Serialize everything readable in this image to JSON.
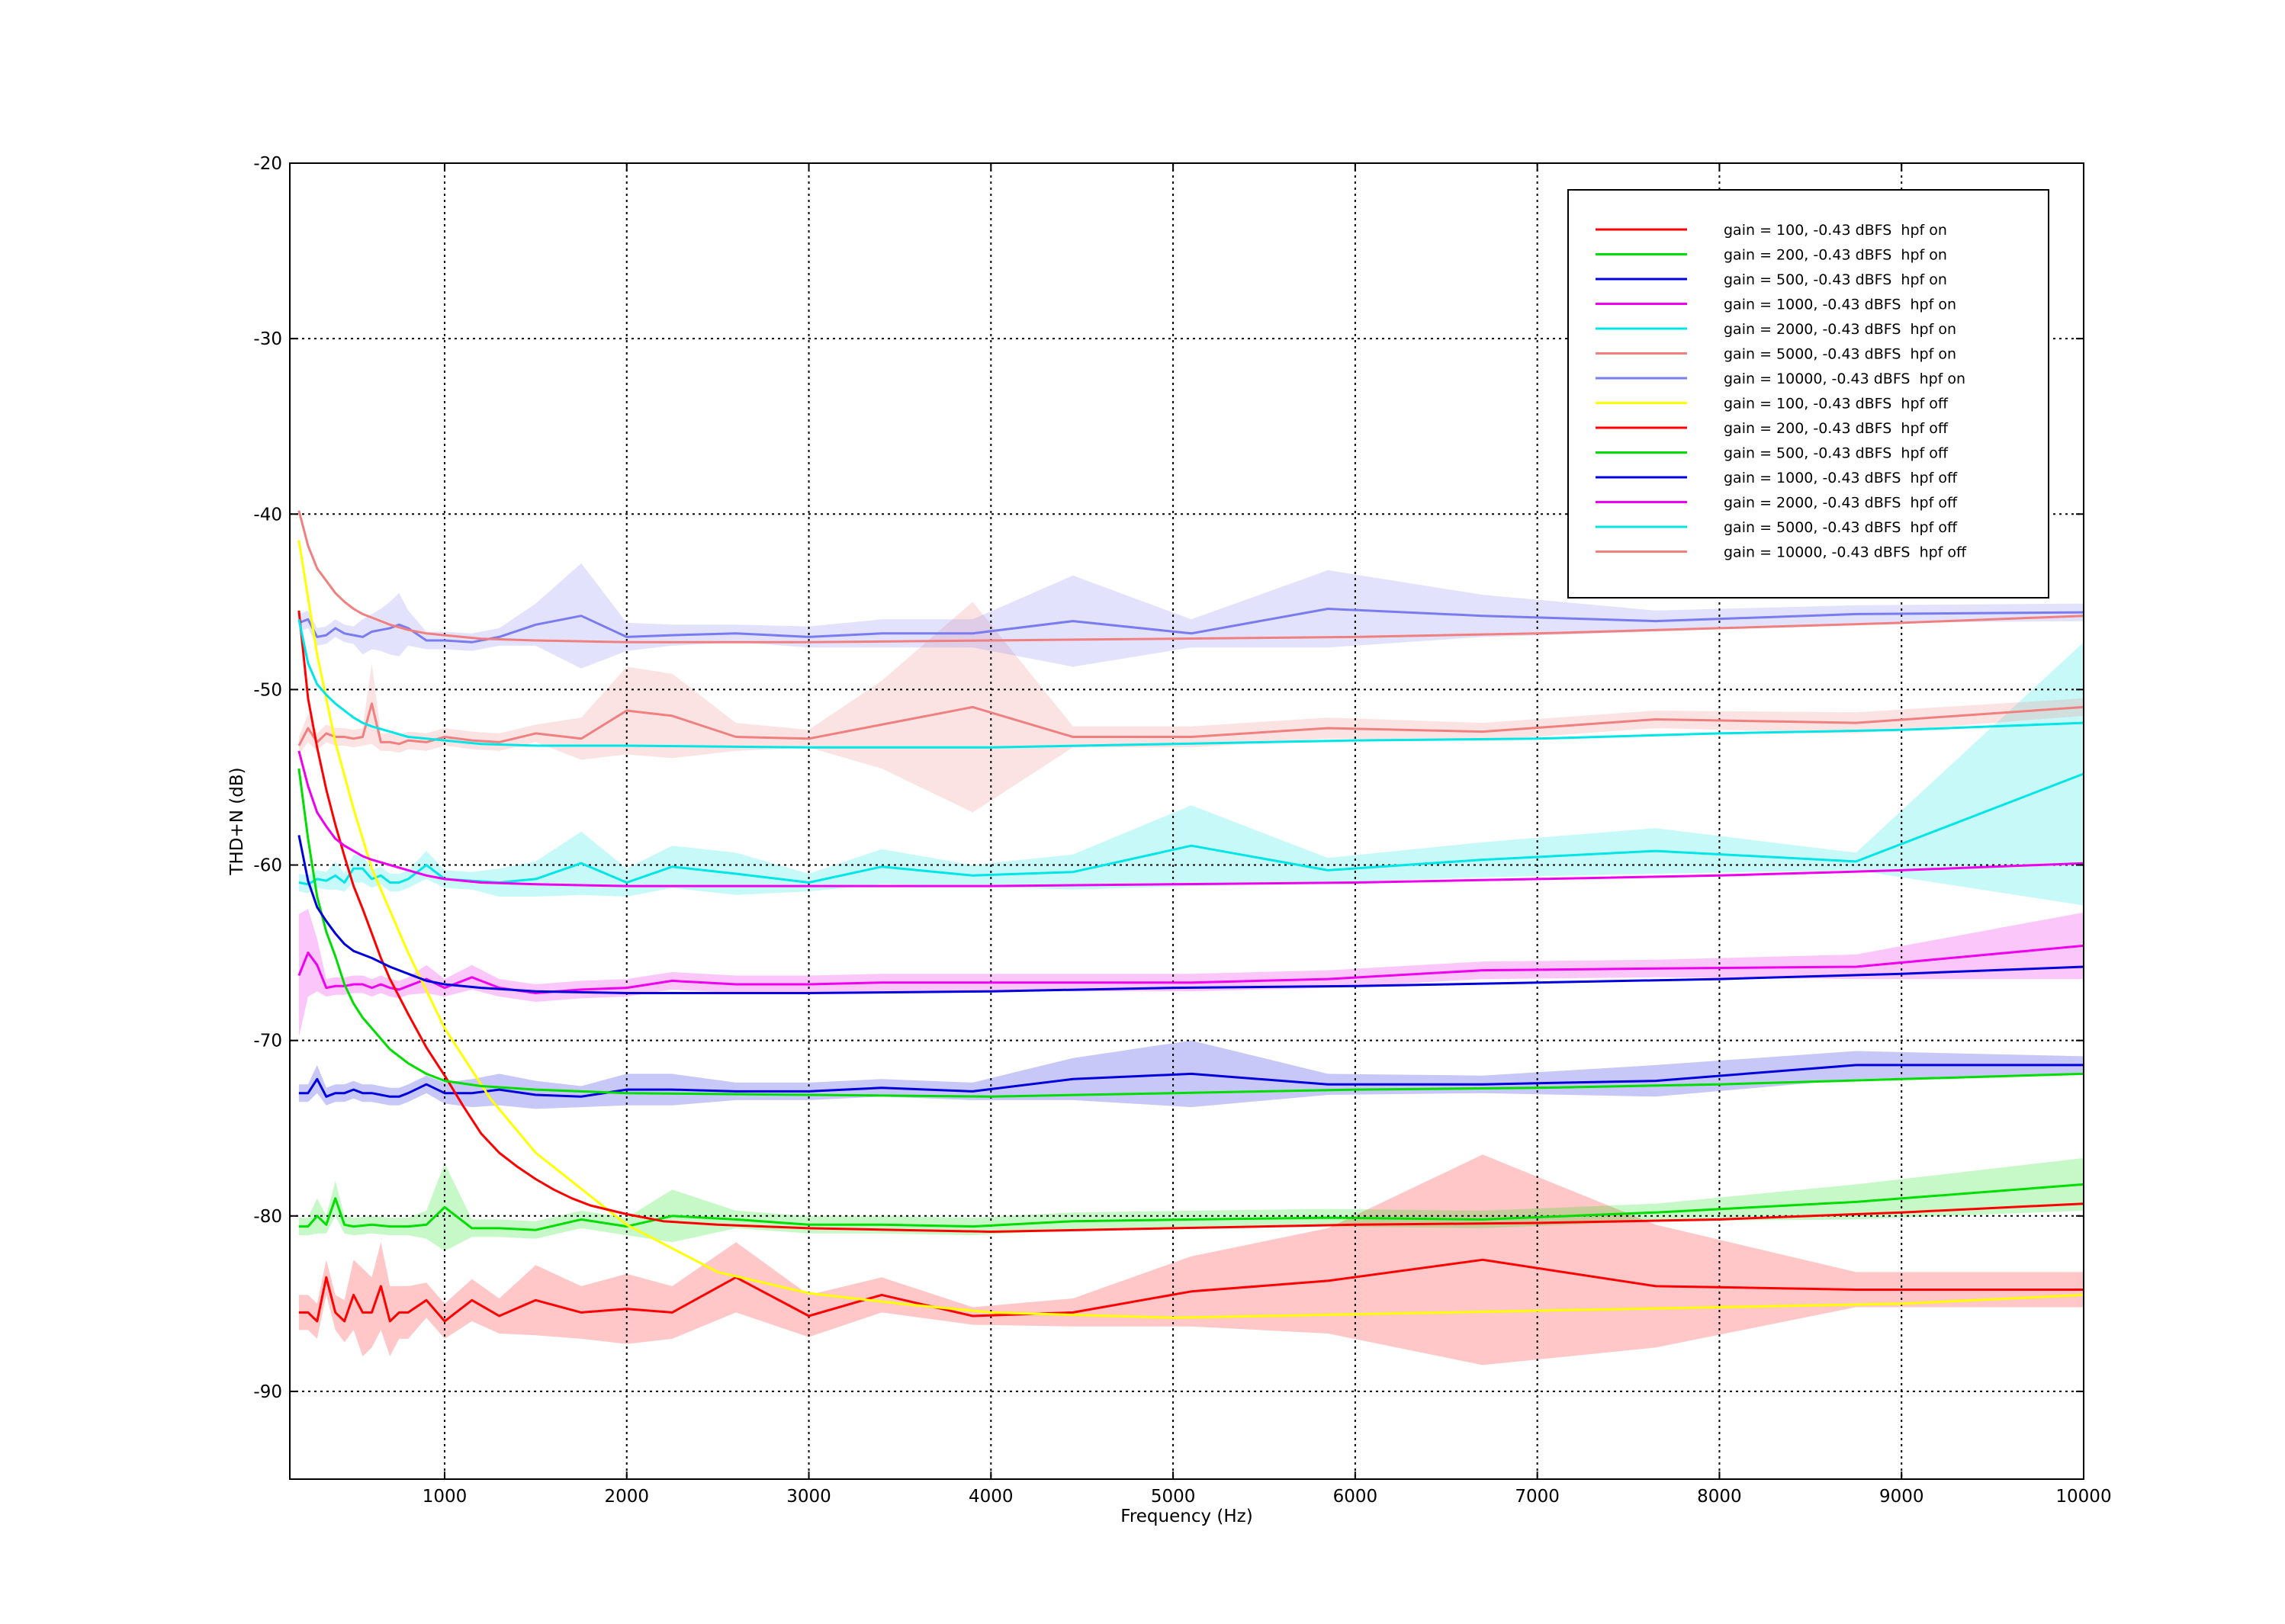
{
  "chart_data": {
    "type": "line",
    "title": "",
    "xlabel": "Frequency (Hz)",
    "ylabel": "THD+N (dB)",
    "xlim": [
      150,
      10000
    ],
    "ylim": [
      -95,
      -20
    ],
    "xticks": [
      1000,
      2000,
      3000,
      4000,
      5000,
      6000,
      7000,
      8000,
      9000,
      10000
    ],
    "yticks": [
      -90,
      -80,
      -70,
      -60,
      -50,
      -40,
      -30,
      -20
    ],
    "grid": true,
    "legend_position": "top-right",
    "series": [
      {
        "name": "gain = 100, -0.43 dBFS  hpf on",
        "color": "#ff0000",
        "x": [
          200,
          250,
          300,
          350,
          400,
          450,
          500,
          550,
          600,
          650,
          700,
          750,
          800,
          900,
          1000,
          1150,
          1300,
          1500,
          1750,
          2000,
          2250,
          2600,
          3000,
          3400,
          3900,
          4450,
          5100,
          5850,
          6700,
          7650,
          8750,
          10000
        ],
        "y": [
          -85.5,
          -85.5,
          -86,
          -83.5,
          -85.5,
          -86,
          -84.5,
          -85.5,
          -85.5,
          -84,
          -86,
          -85.5,
          -85.5,
          -84.8,
          -86,
          -84.8,
          -85.7,
          -84.8,
          -85.5,
          -85.3,
          -85.5,
          -83.5,
          -85.7,
          -84.5,
          -85.7,
          -85.5,
          -84.3,
          -83.7,
          -82.5,
          -84,
          -84.2,
          -84.2
        ],
        "band": [
          1.0,
          1.0,
          1.0,
          1.0,
          1.0,
          1.2,
          2.0,
          2.5,
          2.0,
          2.5,
          2.0,
          1.5,
          1.5,
          1.0,
          1.0,
          1.2,
          1.0,
          2.0,
          1.5,
          2.0,
          1.5,
          2.0,
          1.2,
          1.0,
          0.5,
          0.8,
          2.0,
          3.0,
          6.0,
          3.5,
          1.0,
          1.0
        ]
      },
      {
        "name": "gain = 200, -0.43 dBFS  hpf on",
        "color": "#00dd00",
        "x": [
          200,
          250,
          300,
          350,
          400,
          450,
          500,
          600,
          700,
          800,
          900,
          1000,
          1150,
          1300,
          1500,
          1750,
          2000,
          2250,
          2600,
          3000,
          3400,
          3900,
          4450,
          5100,
          5850,
          6700,
          7650,
          8750,
          10000
        ],
        "y": [
          -80.6,
          -80.6,
          -80,
          -80.5,
          -79,
          -80.5,
          -80.6,
          -80.5,
          -80.6,
          -80.6,
          -80.5,
          -79.5,
          -80.7,
          -80.7,
          -80.8,
          -80.2,
          -80.6,
          -80,
          -80.2,
          -80.5,
          -80.5,
          -80.6,
          -80.3,
          -80.2,
          -80.1,
          -80.2,
          -79.8,
          -79.2,
          -78.2
        ],
        "band": [
          0.5,
          0.5,
          1.0,
          0.5,
          1.0,
          0.5,
          0.5,
          0.5,
          0.5,
          0.5,
          0.8,
          2.5,
          0.5,
          0.5,
          0.5,
          0.5,
          0.5,
          1.5,
          0.5,
          0.5,
          0.5,
          0.5,
          0.5,
          0.5,
          0.5,
          0.5,
          0.5,
          1.0,
          1.5
        ]
      },
      {
        "name": "gain = 500, -0.43 dBFS  hpf on",
        "color": "#0000dd",
        "x": [
          200,
          250,
          300,
          350,
          400,
          450,
          500,
          550,
          600,
          650,
          700,
          750,
          800,
          900,
          1000,
          1150,
          1300,
          1500,
          1750,
          2000,
          2250,
          2600,
          3000,
          3400,
          3900,
          4450,
          5100,
          5850,
          6700,
          7650,
          8750,
          10000
        ],
        "y": [
          -73,
          -73,
          -72.2,
          -73.2,
          -73,
          -73,
          -72.8,
          -73,
          -73,
          -73.1,
          -73.2,
          -73.2,
          -73,
          -72.5,
          -73,
          -73,
          -72.8,
          -73.1,
          -73.2,
          -72.8,
          -72.8,
          -72.9,
          -72.9,
          -72.7,
          -72.9,
          -72.2,
          -71.9,
          -72.5,
          -72.5,
          -72.3,
          -71.4,
          -71.4
        ],
        "band": [
          0.5,
          0.5,
          0.8,
          0.5,
          0.5,
          0.5,
          0.5,
          0.5,
          0.5,
          0.5,
          0.5,
          0.5,
          0.5,
          0.5,
          0.6,
          0.8,
          0.9,
          0.8,
          0.6,
          0.9,
          0.9,
          0.5,
          0.5,
          0.5,
          0.5,
          1.2,
          1.9,
          0.6,
          0.5,
          0.9,
          0.8,
          0.5
        ]
      },
      {
        "name": "gain = 1000, -0.43 dBFS  hpf on",
        "color": "#ee00ee",
        "x": [
          200,
          250,
          300,
          350,
          400,
          450,
          500,
          550,
          600,
          650,
          700,
          750,
          800,
          900,
          1000,
          1150,
          1300,
          1500,
          1750,
          2000,
          2250,
          2600,
          3000,
          3400,
          3900,
          4450,
          5100,
          5850,
          6700,
          7650,
          8750,
          10000
        ],
        "y": [
          -66.3,
          -65,
          -65.7,
          -67,
          -66.9,
          -66.9,
          -66.8,
          -66.8,
          -67,
          -66.8,
          -67,
          -67.1,
          -66.9,
          -66.5,
          -67,
          -66.4,
          -67,
          -67.3,
          -67.1,
          -67,
          -66.6,
          -66.8,
          -66.8,
          -66.7,
          -66.7,
          -66.7,
          -66.7,
          -66.5,
          -66,
          -65.9,
          -65.8,
          -64.6
        ],
        "band": [
          3.5,
          2.5,
          1.5,
          0.5,
          0.5,
          0.5,
          0.5,
          0.5,
          0.5,
          0.5,
          0.5,
          0.5,
          0.5,
          0.8,
          0.5,
          0.7,
          0.5,
          0.5,
          0.5,
          0.5,
          0.5,
          0.5,
          0.5,
          0.5,
          0.5,
          0.5,
          0.5,
          0.5,
          0.5,
          0.5,
          0.7,
          1.9
        ]
      },
      {
        "name": "gain = 2000, -0.43 dBFS  hpf on",
        "color": "#00e5e5",
        "x": [
          200,
          250,
          300,
          350,
          400,
          450,
          500,
          550,
          600,
          650,
          700,
          750,
          800,
          900,
          1000,
          1150,
          1300,
          1500,
          1750,
          2000,
          2250,
          2600,
          3000,
          3400,
          3900,
          4450,
          5100,
          5850,
          6700,
          7650,
          8750,
          10000
        ],
        "y": [
          -61,
          -61.1,
          -60.8,
          -60.9,
          -60.6,
          -61,
          -60.2,
          -60.2,
          -60.8,
          -60.6,
          -61,
          -61,
          -60.8,
          -60,
          -60.8,
          -60.9,
          -61,
          -60.8,
          -59.9,
          -61,
          -60.1,
          -60.5,
          -61,
          -60.1,
          -60.6,
          -60.4,
          -58.9,
          -60.3,
          -59.7,
          -59.2,
          -59.8,
          -54.8
        ],
        "band": [
          0.5,
          0.5,
          0.5,
          0.5,
          0.8,
          0.5,
          0.8,
          0.8,
          0.5,
          0.5,
          0.5,
          0.5,
          0.5,
          0.8,
          0.5,
          0.5,
          0.8,
          1.0,
          1.8,
          0.8,
          1.2,
          1.2,
          0.5,
          1.0,
          0.6,
          1.0,
          2.3,
          0.7,
          1.0,
          1.3,
          0.5,
          7.5
        ]
      },
      {
        "name": "gain = 5000, -0.43 dBFS  hpf on",
        "color": "#f08080",
        "x": [
          200,
          250,
          300,
          350,
          400,
          450,
          500,
          550,
          600,
          650,
          700,
          750,
          800,
          900,
          1000,
          1150,
          1300,
          1500,
          1750,
          2000,
          2250,
          2600,
          3000,
          3400,
          3900,
          4450,
          5100,
          5850,
          6700,
          7650,
          8750,
          10000
        ],
        "y": [
          -53.2,
          -52.2,
          -53,
          -52.5,
          -52.7,
          -52.7,
          -52.8,
          -52.7,
          -50.8,
          -53,
          -53,
          -53.1,
          -52.9,
          -53,
          -52.7,
          -52.9,
          -53,
          -52.5,
          -52.8,
          -51.2,
          -51.5,
          -52.7,
          -52.8,
          -52,
          -51,
          -52.7,
          -52.7,
          -52.2,
          -52.4,
          -51.7,
          -51.9,
          -51
        ],
        "band": [
          0.5,
          0.8,
          0.5,
          0.5,
          0.5,
          0.5,
          0.5,
          0.5,
          2.3,
          0.5,
          0.5,
          0.5,
          0.5,
          0.5,
          0.5,
          0.5,
          0.5,
          0.5,
          1.2,
          2.5,
          2.4,
          0.8,
          0.5,
          2.5,
          6.0,
          0.6,
          0.6,
          0.6,
          0.5,
          0.5,
          0.6,
          0.5
        ]
      },
      {
        "name": "gain = 10000, -0.43 dBFS  hpf on",
        "color": "#7b7bf0",
        "x": [
          200,
          250,
          300,
          350,
          400,
          450,
          500,
          550,
          600,
          650,
          700,
          750,
          800,
          900,
          1000,
          1150,
          1300,
          1500,
          1750,
          2000,
          2250,
          2600,
          3000,
          3400,
          3900,
          4450,
          5100,
          5850,
          6700,
          7650,
          8750,
          10000
        ],
        "y": [
          -46.2,
          -46,
          -47,
          -46.9,
          -46.5,
          -46.8,
          -46.9,
          -47,
          -46.7,
          -46.6,
          -46.5,
          -46.3,
          -46.5,
          -47.2,
          -47.2,
          -47.3,
          -47,
          -46.3,
          -45.8,
          -47,
          -46.9,
          -46.8,
          -47,
          -46.8,
          -46.8,
          -46.1,
          -46.8,
          -45.4,
          -45.8,
          -46.1,
          -45.7,
          -45.6
        ],
        "band": [
          0.5,
          0.5,
          0.5,
          0.5,
          0.5,
          0.5,
          0.5,
          1.0,
          1.0,
          1.2,
          1.5,
          1.8,
          1.0,
          0.5,
          0.5,
          0.5,
          0.5,
          1.2,
          3.0,
          0.8,
          0.6,
          0.5,
          0.6,
          0.8,
          0.8,
          2.6,
          0.8,
          2.2,
          1.2,
          0.6,
          0.5,
          0.5
        ]
      },
      {
        "name": "gain = 100, -0.43 dBFS  hpf off",
        "color": "#ffff00",
        "x": [
          200,
          300,
          400,
          500,
          600,
          700,
          800,
          1000,
          1250,
          1500,
          2000,
          2500,
          3000,
          3500,
          4000,
          5000,
          6000,
          7000,
          8000,
          9000,
          10000
        ],
        "y": [
          -41.5,
          -48,
          -53,
          -56.8,
          -60.2,
          -62.6,
          -65,
          -69.3,
          -73.3,
          -76.4,
          -80.5,
          -83.2,
          -84.4,
          -85,
          -85.5,
          -85.8,
          -85.6,
          -85.4,
          -85.2,
          -85,
          -84.5
        ],
        "band": []
      },
      {
        "name": "gain = 200, -0.43 dBFS  hpf off",
        "color": "#ff0000",
        "x": [
          200,
          250,
          300,
          350,
          400,
          450,
          500,
          550,
          600,
          650,
          700,
          750,
          800,
          900,
          1000,
          1100,
          1200,
          1300,
          1400,
          1500,
          1600,
          1700,
          1800,
          2000,
          2200,
          2500,
          3000,
          3500,
          4000,
          5000,
          6000,
          7000,
          8000,
          9000,
          10000
        ],
        "y": [
          -45.5,
          -50.5,
          -53.3,
          -55.7,
          -57.7,
          -59.5,
          -61.2,
          -62.5,
          -63.9,
          -65.3,
          -66.5,
          -67.5,
          -68.5,
          -70.4,
          -72,
          -73.7,
          -75.3,
          -76.4,
          -77.2,
          -77.9,
          -78.5,
          -79,
          -79.4,
          -79.9,
          -80.3,
          -80.5,
          -80.7,
          -80.8,
          -80.9,
          -80.7,
          -80.5,
          -80.4,
          -80.2,
          -79.8,
          -79.3
        ],
        "band": []
      },
      {
        "name": "gain = 500, -0.43 dBFS  hpf off",
        "color": "#00dd00",
        "x": [
          200,
          250,
          300,
          350,
          400,
          450,
          500,
          550,
          600,
          700,
          800,
          900,
          1000,
          1200,
          1500,
          2000,
          3000,
          4000,
          5000,
          6000,
          7000,
          8000,
          9000,
          10000
        ],
        "y": [
          -54.5,
          -58.5,
          -61.8,
          -63.8,
          -65.2,
          -66.8,
          -67.9,
          -68.7,
          -69.3,
          -70.5,
          -71.3,
          -71.9,
          -72.3,
          -72.6,
          -72.8,
          -73,
          -73.1,
          -73.2,
          -73,
          -72.8,
          -72.7,
          -72.5,
          -72.2,
          -71.9
        ],
        "band": []
      },
      {
        "name": "gain = 1000, -0.43 dBFS  hpf off",
        "color": "#0000dd",
        "x": [
          200,
          250,
          300,
          350,
          400,
          450,
          500,
          550,
          600,
          700,
          800,
          900,
          1000,
          1200,
          1500,
          2000,
          3000,
          4000,
          5000,
          6000,
          7000,
          8000,
          9000,
          10000
        ],
        "y": [
          -58.3,
          -60.9,
          -62.4,
          -63.2,
          -63.9,
          -64.5,
          -64.9,
          -65.1,
          -65.3,
          -65.8,
          -66.2,
          -66.6,
          -66.8,
          -67,
          -67.2,
          -67.3,
          -67.3,
          -67.2,
          -67,
          -66.9,
          -66.7,
          -66.5,
          -66.2,
          -65.8
        ],
        "band": []
      },
      {
        "name": "gain = 2000, -0.43 dBFS  hpf off",
        "color": "#ee00ee",
        "x": [
          200,
          250,
          300,
          350,
          400,
          450,
          500,
          550,
          600,
          700,
          800,
          900,
          1000,
          1200,
          1500,
          2000,
          2500,
          3000,
          4000,
          5000,
          6000,
          7000,
          8000,
          9000,
          10000
        ],
        "y": [
          -53.5,
          -55.5,
          -57,
          -57.8,
          -58.5,
          -58.9,
          -59.2,
          -59.5,
          -59.7,
          -60,
          -60.3,
          -60.6,
          -60.8,
          -61,
          -61.1,
          -61.2,
          -61.2,
          -61.2,
          -61.2,
          -61.1,
          -61,
          -60.8,
          -60.6,
          -60.3,
          -59.9
        ],
        "band": []
      },
      {
        "name": "gain = 5000, -0.43 dBFS  hpf off",
        "color": "#00e5e5",
        "x": [
          200,
          250,
          300,
          350,
          400,
          450,
          500,
          550,
          600,
          700,
          800,
          900,
          1000,
          1200,
          1500,
          2000,
          3000,
          4000,
          5000,
          6000,
          7000,
          8000,
          9000,
          10000
        ],
        "y": [
          -46,
          -48.5,
          -49.7,
          -50.3,
          -50.8,
          -51.2,
          -51.6,
          -51.9,
          -52.1,
          -52.4,
          -52.7,
          -52.8,
          -52.9,
          -53.1,
          -53.2,
          -53.2,
          -53.3,
          -53.3,
          -53.1,
          -52.9,
          -52.8,
          -52.5,
          -52.3,
          -51.9
        ],
        "band": []
      },
      {
        "name": "gain = 10000, -0.43 dBFS  hpf off",
        "color": "#f08080",
        "x": [
          200,
          250,
          300,
          350,
          400,
          450,
          500,
          550,
          600,
          700,
          800,
          900,
          1000,
          1200,
          1500,
          2000,
          3000,
          4000,
          5000,
          6000,
          7000,
          8000,
          9000,
          10000
        ],
        "y": [
          -39.8,
          -41.8,
          -43.1,
          -43.8,
          -44.5,
          -45,
          -45.4,
          -45.7,
          -45.9,
          -46.3,
          -46.6,
          -46.8,
          -46.9,
          -47.1,
          -47.2,
          -47.3,
          -47.3,
          -47.2,
          -47.1,
          -47,
          -46.8,
          -46.5,
          -46.2,
          -45.8
        ],
        "band": []
      }
    ]
  }
}
